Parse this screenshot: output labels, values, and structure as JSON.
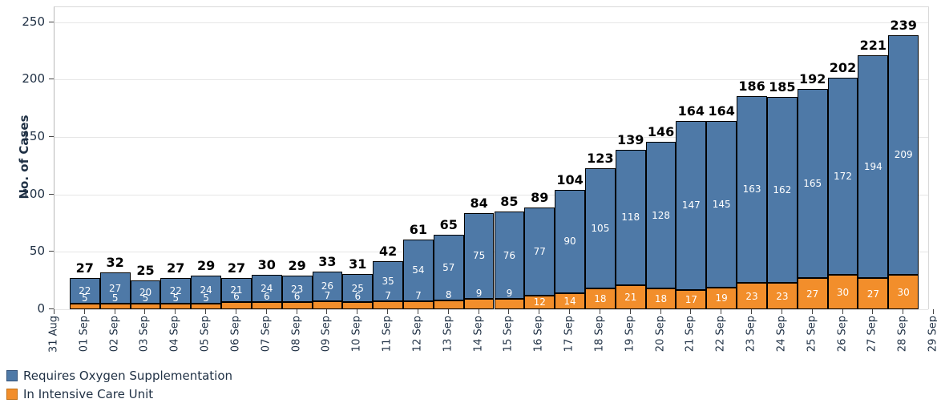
{
  "chart_data": {
    "type": "bar",
    "stacked": true,
    "title": "",
    "xlabel": "",
    "ylabel": "No. of Cases",
    "ylim": [
      0,
      250
    ],
    "yticks": [
      0,
      50,
      100,
      150,
      200,
      250
    ],
    "grid": "horizontal",
    "legend_position": "bottom-left",
    "x_tick_labels": [
      "31 Aug",
      "01 Sep",
      "02 Sep",
      "03 Sep",
      "04 Sep",
      "05 Sep",
      "06 Sep",
      "07 Sep",
      "08 Sep",
      "09 Sep",
      "10 Sep",
      "11 Sep",
      "12 Sep",
      "13 Sep",
      "14 Sep",
      "15 Sep",
      "16 Sep",
      "17 Sep",
      "18 Sep",
      "19 Sep",
      "20 Sep",
      "21 Sep",
      "22 Sep",
      "23 Sep",
      "24 Sep",
      "25 Sep",
      "26 Sep",
      "27 Sep",
      "28 Sep",
      "29 Sep"
    ],
    "categories": [
      "01 Sep",
      "02 Sep",
      "03 Sep",
      "04 Sep",
      "05 Sep",
      "06 Sep",
      "07 Sep",
      "08 Sep",
      "09 Sep",
      "10 Sep",
      "11 Sep",
      "12 Sep",
      "13 Sep",
      "14 Sep",
      "15 Sep",
      "16 Sep",
      "17 Sep",
      "18 Sep",
      "19 Sep",
      "20 Sep",
      "21 Sep",
      "22 Sep",
      "23 Sep",
      "24 Sep",
      "25 Sep",
      "26 Sep",
      "27 Sep",
      "28 Sep"
    ],
    "series": [
      {
        "name": "Requires Oxygen Supplementation",
        "color": "#4e79a7",
        "swatch_border": "#34537a",
        "values": [
          22,
          27,
          20,
          22,
          24,
          21,
          24,
          23,
          26,
          25,
          35,
          54,
          57,
          75,
          76,
          77,
          90,
          105,
          118,
          128,
          147,
          145,
          163,
          162,
          165,
          172,
          194,
          209
        ]
      },
      {
        "name": "In Intensive Care Unit",
        "color": "#f28e2b",
        "swatch_border": "#c17015",
        "values": [
          5,
          5,
          5,
          5,
          5,
          6,
          6,
          6,
          7,
          6,
          7,
          7,
          8,
          9,
          9,
          12,
          14,
          18,
          21,
          18,
          17,
          19,
          23,
          23,
          27,
          30,
          27,
          30
        ]
      }
    ],
    "totals": [
      27,
      32,
      25,
      27,
      29,
      27,
      30,
      29,
      33,
      31,
      42,
      61,
      65,
      84,
      85,
      89,
      104,
      123,
      139,
      146,
      164,
      164,
      186,
      185,
      192,
      202,
      221,
      239
    ]
  },
  "colors": {
    "text": "#1f3044",
    "total_label": "#000000",
    "bar_value_label": "#ffffff",
    "grid_line": "#e6e6e6",
    "plot_border": "#d9d9d9",
    "axis_line": "#b9b9b9",
    "tick_mark": "#444444",
    "bar_outline": "#000000",
    "background": "#ffffff"
  }
}
